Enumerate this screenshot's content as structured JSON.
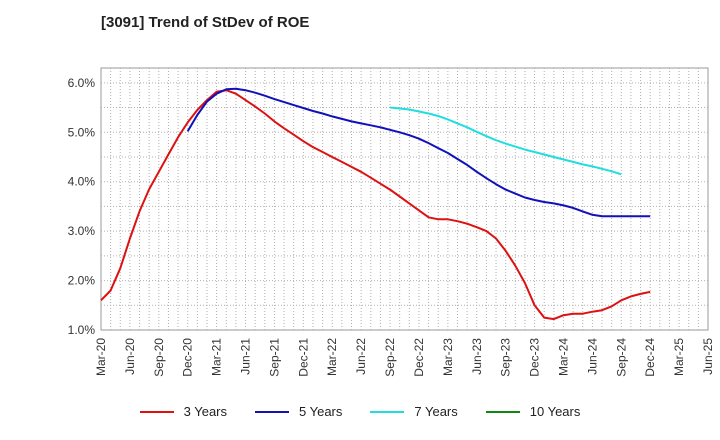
{
  "chart_data": {
    "type": "line",
    "title": "[3091]  Trend of StDev of ROE",
    "x_ticks": [
      "Mar-20",
      "Jun-20",
      "Sep-20",
      "Dec-20",
      "Mar-21",
      "Jun-21",
      "Sep-21",
      "Dec-21",
      "Mar-22",
      "Jun-22",
      "Sep-22",
      "Dec-22",
      "Mar-23",
      "Jun-23",
      "Sep-23",
      "Dec-23",
      "Mar-24",
      "Jun-24",
      "Sep-24",
      "Dec-24",
      "Mar-25",
      "Jun-25"
    ],
    "y_ticks": [
      "1.0%",
      "2.0%",
      "3.0%",
      "4.0%",
      "5.0%",
      "6.0%"
    ],
    "ylim": [
      1.0,
      6.3
    ],
    "grid": true,
    "legend_position": "bottom",
    "series": [
      {
        "name": "3 Years",
        "color": "#dd1111",
        "values": [
          1.6,
          1.8,
          2.25,
          2.85,
          3.4,
          3.85,
          4.2,
          4.55,
          4.9,
          5.2,
          5.45,
          5.65,
          5.82,
          5.85,
          5.78,
          5.65,
          5.52,
          5.38,
          5.22,
          5.08,
          4.95,
          4.82,
          4.7,
          4.6,
          4.5,
          4.4,
          4.3,
          4.2,
          4.08,
          3.96,
          3.84,
          3.7,
          3.56,
          3.42,
          3.28,
          3.24,
          3.24,
          3.2,
          3.15,
          3.08,
          3.0,
          2.85,
          2.6,
          2.3,
          1.95,
          1.5,
          1.25,
          1.22,
          1.3,
          1.33,
          1.33,
          1.37,
          1.4,
          1.48,
          1.6,
          1.68,
          1.73,
          1.77
        ]
      },
      {
        "name": "5 Years",
        "color": "#1111bb",
        "start_index": 9,
        "values": [
          5.02,
          5.35,
          5.62,
          5.78,
          5.87,
          5.88,
          5.85,
          5.8,
          5.74,
          5.67,
          5.61,
          5.55,
          5.49,
          5.43,
          5.38,
          5.32,
          5.27,
          5.22,
          5.18,
          5.14,
          5.1,
          5.05,
          5.0,
          4.94,
          4.87,
          4.78,
          4.68,
          4.58,
          4.46,
          4.34,
          4.2,
          4.07,
          3.95,
          3.84,
          3.76,
          3.68,
          3.63,
          3.59,
          3.56,
          3.52,
          3.47,
          3.4,
          3.33,
          3.3,
          3.3,
          3.3,
          3.3,
          3.3,
          3.3
        ]
      },
      {
        "name": "7 Years",
        "color": "#22dddd",
        "start_index": 30,
        "values": [
          5.5,
          5.48,
          5.46,
          5.42,
          5.38,
          5.33,
          5.26,
          5.18,
          5.1,
          5.01,
          4.92,
          4.84,
          4.77,
          4.71,
          4.65,
          4.6,
          4.55,
          4.5,
          4.45,
          4.4,
          4.35,
          4.31,
          4.26,
          4.21,
          4.15
        ]
      },
      {
        "name": "10 Years",
        "color": "#118811",
        "values": []
      }
    ]
  }
}
